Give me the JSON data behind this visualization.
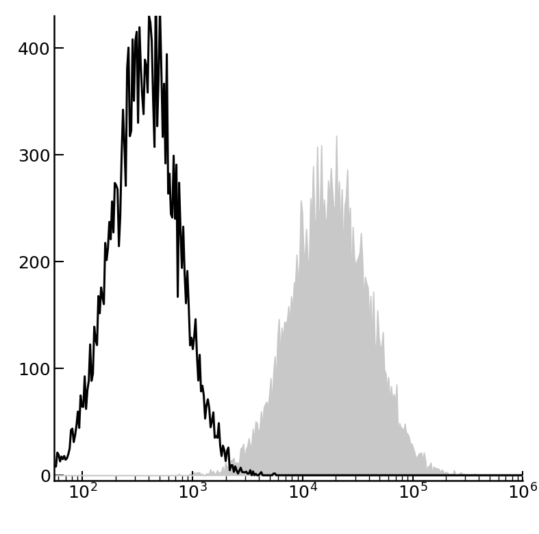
{
  "xlim": [
    55,
    1000000
  ],
  "ylim": [
    -5,
    430
  ],
  "yticks": [
    0,
    100,
    200,
    300,
    400
  ],
  "background_color": "#ffffff",
  "black_histogram": {
    "mean_log10": 2.57,
    "std_log10": 0.3,
    "peak_y": 410,
    "noise_std": 0.1,
    "color": "#000000",
    "linewidth": 2.2
  },
  "gray_histogram": {
    "mean_log10": 4.25,
    "std_log10": 0.35,
    "peak_y": 300,
    "noise_std": 0.06,
    "color": "#c8c8c8",
    "linewidth": 0.8
  },
  "n_bins": 350,
  "n_cells_black": 15000,
  "n_cells_gray": 15000,
  "seed_black": 12345,
  "seed_gray": 99999,
  "tick_labelsize": 18
}
